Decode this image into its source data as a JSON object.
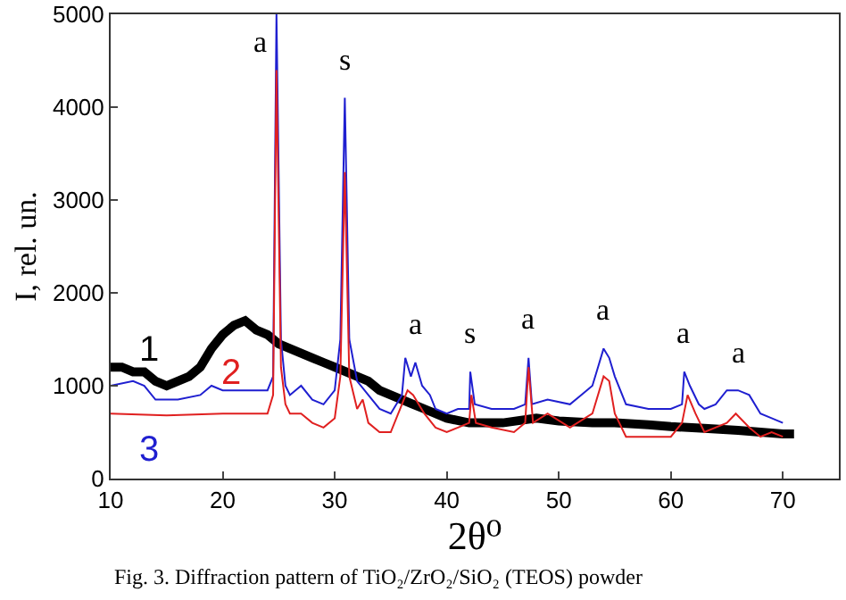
{
  "chart_data": {
    "type": "line",
    "xlabel": "2θ⁰",
    "ylabel": "I, rel. un.",
    "xlim": [
      10,
      75
    ],
    "ylim": [
      0,
      5000
    ],
    "xticks": [
      10,
      20,
      30,
      40,
      50,
      60,
      70
    ],
    "yticks": [
      0,
      1000,
      2000,
      3000,
      4000,
      5000
    ],
    "grid": false,
    "legend": false,
    "marker": "none",
    "line_style": "solid",
    "series": [
      {
        "name": "1",
        "color": "#000000",
        "x": [
          10,
          11,
          12,
          13,
          14,
          15,
          16,
          17,
          18,
          19,
          20,
          21,
          22,
          23,
          24,
          25,
          26,
          27,
          28,
          29,
          30,
          31,
          32,
          33,
          34,
          35,
          36,
          37,
          38,
          40,
          42,
          45,
          48,
          50,
          53,
          55,
          58,
          60,
          63,
          66,
          68,
          70,
          71
        ],
        "values": [
          1200,
          1200,
          1150,
          1150,
          1050,
          1000,
          1050,
          1100,
          1200,
          1400,
          1550,
          1650,
          1700,
          1600,
          1550,
          1450,
          1400,
          1350,
          1300,
          1250,
          1200,
          1150,
          1100,
          1050,
          950,
          900,
          850,
          800,
          750,
          650,
          600,
          600,
          650,
          620,
          600,
          600,
          580,
          560,
          540,
          520,
          500,
          480,
          480
        ]
      },
      {
        "name": "3",
        "color": "#1f1fd0",
        "x": [
          10,
          12,
          13,
          14,
          16,
          18,
          19,
          20,
          22,
          24,
          24.5,
          24.8,
          25.2,
          25.6,
          26,
          27,
          28,
          29,
          30,
          30.5,
          30.9,
          31.3,
          32,
          33,
          34,
          35,
          36,
          36.3,
          36.8,
          37.2,
          37.8,
          38.5,
          39,
          40,
          41,
          42,
          42.1,
          42.5,
          44,
          46,
          47,
          47.3,
          47.6,
          49,
          51,
          52,
          52.5,
          53,
          53.5,
          54,
          54.5,
          55,
          56,
          58,
          60,
          61,
          61.2,
          61.7,
          62.5,
          63,
          64,
          65,
          66,
          67,
          68,
          69,
          70
        ],
        "values": [
          1000,
          1050,
          1000,
          850,
          850,
          900,
          1000,
          950,
          950,
          950,
          1100,
          5000,
          1500,
          1000,
          900,
          1000,
          850,
          800,
          950,
          1500,
          4100,
          1500,
          1050,
          900,
          750,
          700,
          900,
          1300,
          1100,
          1250,
          1000,
          900,
          750,
          700,
          750,
          750,
          1150,
          800,
          750,
          750,
          800,
          1300,
          800,
          850,
          800,
          900,
          950,
          1000,
          1200,
          1400,
          1300,
          1100,
          800,
          750,
          750,
          800,
          1150,
          1000,
          800,
          750,
          800,
          950,
          950,
          900,
          700,
          650,
          600
        ]
      },
      {
        "name": "2",
        "color": "#e02020",
        "x": [
          10,
          15,
          20,
          24,
          24.5,
          24.8,
          25.2,
          25.6,
          26,
          27,
          28,
          29,
          30,
          30.5,
          30.9,
          31.3,
          32,
          32.5,
          33,
          34,
          35,
          36,
          36.5,
          37,
          38,
          39,
          40,
          41,
          42,
          42.2,
          42.6,
          44,
          46,
          47,
          47.3,
          47.7,
          49,
          51,
          53,
          54,
          54.5,
          55,
          56,
          58,
          60,
          61,
          61.5,
          62.2,
          63,
          65,
          65.8,
          67,
          68,
          69,
          70
        ],
        "values": [
          700,
          680,
          700,
          700,
          900,
          4400,
          1200,
          800,
          700,
          700,
          600,
          550,
          650,
          1100,
          3300,
          1100,
          750,
          850,
          600,
          500,
          500,
          800,
          950,
          900,
          700,
          550,
          500,
          550,
          600,
          900,
          600,
          550,
          500,
          600,
          1200,
          600,
          700,
          550,
          700,
          1100,
          1050,
          700,
          450,
          450,
          450,
          600,
          900,
          700,
          500,
          600,
          700,
          550,
          450,
          500,
          450
        ]
      }
    ],
    "annotations": [
      {
        "text": "a",
        "x": 24.8,
        "y": 5000
      },
      {
        "text": "s",
        "x": 30.9,
        "y": 4100
      },
      {
        "text": "a",
        "x": 37.2,
        "y": 1250
      },
      {
        "text": "s",
        "x": 42.1,
        "y": 1150
      },
      {
        "text": "a",
        "x": 47.3,
        "y": 1300
      },
      {
        "text": "a",
        "x": 54,
        "y": 1400
      },
      {
        "text": "a",
        "x": 61.2,
        "y": 1150
      },
      {
        "text": "a",
        "x": 66,
        "y": 950
      },
      "Fig. 3. Diffraction pattern of TiO₂/ZrO₂/SiO₂ (TEOS) powder"
    ]
  }
}
